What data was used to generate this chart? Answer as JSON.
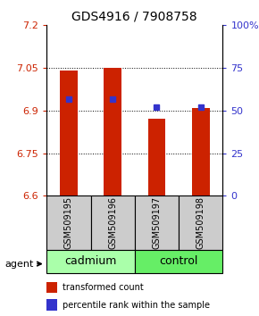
{
  "title": "GDS4916 / 7908758",
  "samples": [
    "GSM509195",
    "GSM509196",
    "GSM509197",
    "GSM509198"
  ],
  "bar_values": [
    7.04,
    7.05,
    6.87,
    6.91
  ],
  "bar_base": 6.6,
  "blue_pct": [
    57,
    57,
    52,
    52
  ],
  "bar_color": "#cc2200",
  "marker_color": "#3333cc",
  "ylim_left": [
    6.6,
    7.2
  ],
  "ylim_right": [
    0,
    100
  ],
  "yticks_left": [
    6.6,
    6.75,
    6.9,
    7.05,
    7.2
  ],
  "yticks_right": [
    0,
    25,
    50,
    75,
    100
  ],
  "ytick_labels_left": [
    "6.6",
    "6.75",
    "6.9",
    "7.05",
    "7.2"
  ],
  "ytick_labels_right": [
    "0",
    "25",
    "50",
    "75",
    "100%"
  ],
  "dotted_lines": [
    6.75,
    6.9,
    7.05
  ],
  "groups": [
    {
      "label": "cadmium",
      "samples": [
        0,
        1
      ],
      "color": "#aaffaa"
    },
    {
      "label": "control",
      "samples": [
        2,
        3
      ],
      "color": "#66ee66"
    }
  ],
  "agent_label": "agent",
  "legend": [
    {
      "color": "#cc2200",
      "label": "transformed count"
    },
    {
      "color": "#3333cc",
      "label": "percentile rank within the sample"
    }
  ],
  "bar_width": 0.4,
  "sample_box_color": "#cccccc",
  "title_fontsize": 10,
  "axis_fontsize": 8,
  "sample_fontsize": 7,
  "group_fontsize": 9,
  "legend_fontsize": 7
}
